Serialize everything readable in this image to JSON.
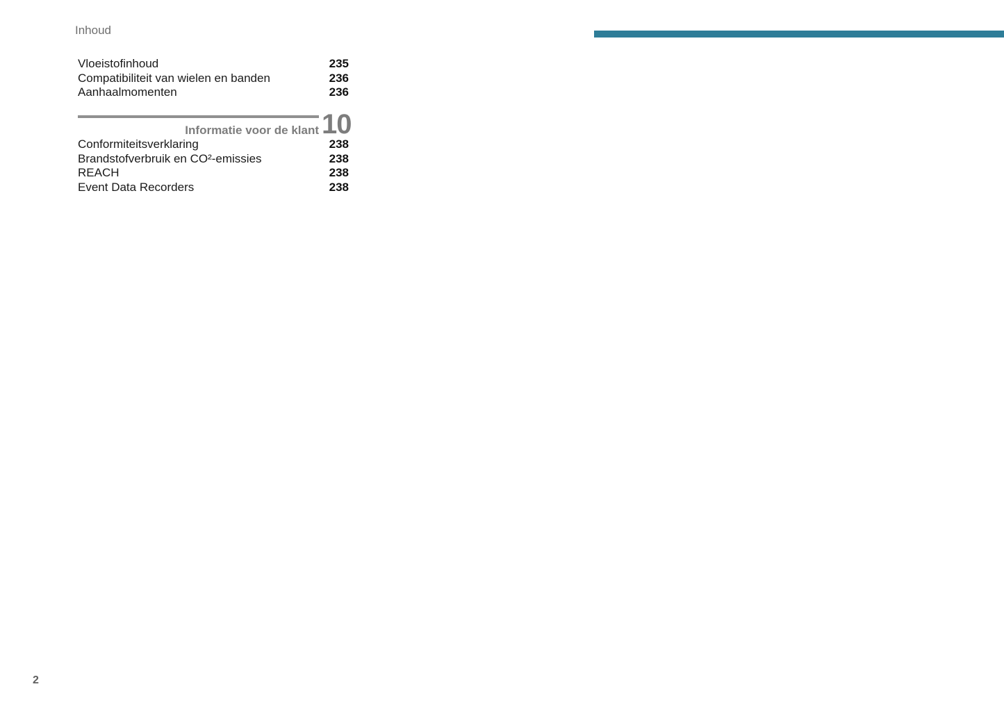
{
  "page": {
    "title": "Inhoud",
    "page_number": "2"
  },
  "colors": {
    "accent_teal": "#2e7d98",
    "header_gray": "#6f6f6f",
    "chapter_gray": "#7d7d7d",
    "divider_gray": "#909090",
    "body_text": "#1a1a1a"
  },
  "toc": {
    "section1": {
      "entries": [
        {
          "label": "Vloeistofinhoud",
          "page": "235"
        },
        {
          "label": "Compatibiliteit van wielen en banden",
          "page": "236"
        },
        {
          "label": "Aanhaalmomenten",
          "page": "236"
        }
      ]
    },
    "section2": {
      "chapter_number": "10",
      "chapter_title": "Informatie voor de klant",
      "entries": [
        {
          "label": "Conformiteitsverklaring",
          "page": "238"
        },
        {
          "label": "Brandstofverbruik en CO²-emissies",
          "page": "238"
        },
        {
          "label": "REACH",
          "page": "238"
        },
        {
          "label": "Event Data Recorders",
          "page": "238"
        }
      ]
    }
  }
}
